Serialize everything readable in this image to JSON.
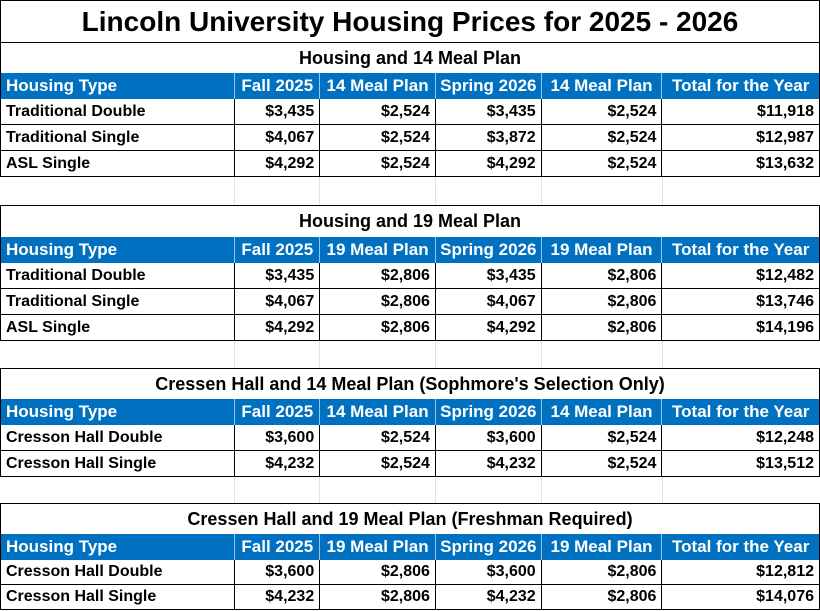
{
  "title": "Lincoln University Housing Prices for 2025 - 2026",
  "sections": [
    {
      "title": "Housing and 14 Meal Plan",
      "headers": [
        "Housing Type",
        "Fall 2025",
        "14 Meal Plan",
        "Spring 2026",
        "14 Meal Plan",
        "Total for the Year"
      ],
      "rows": [
        [
          "Traditional Double",
          "$3,435",
          "$2,524",
          "$3,435",
          "$2,524",
          "$11,918"
        ],
        [
          "Traditional Single",
          "$4,067",
          "$2,524",
          "$3,872",
          "$2,524",
          "$12,987"
        ],
        [
          "ASL Single",
          "$4,292",
          "$2,524",
          "$4,292",
          "$2,524",
          "$13,632"
        ]
      ]
    },
    {
      "title": "Housing and 19 Meal Plan",
      "headers": [
        "Housing Type",
        "Fall 2025",
        "19 Meal Plan",
        "Spring 2026",
        "19 Meal Plan",
        "Total for the Year"
      ],
      "rows": [
        [
          "Traditional Double",
          "$3,435",
          "$2,806",
          "$3,435",
          "$2,806",
          "$12,482"
        ],
        [
          "Traditional Single",
          "$4,067",
          "$2,806",
          "$4,067",
          "$2,806",
          "$13,746"
        ],
        [
          "ASL Single",
          "$4,292",
          "$2,806",
          "$4,292",
          "$2,806",
          "$14,196"
        ]
      ]
    },
    {
      "title": "Cressen Hall and 14 Meal Plan (Sophmore's Selection Only)",
      "headers": [
        "Housing Type",
        "Fall 2025",
        "14 Meal Plan",
        "Spring 2026",
        "14 Meal Plan",
        "Total for the Year"
      ],
      "rows": [
        [
          "Cresson Hall Double",
          "$3,600",
          "$2,524",
          "$3,600",
          "$2,524",
          "$12,248"
        ],
        [
          "Cresson Hall Single",
          "$4,232",
          "$2,524",
          "$4,232",
          "$2,524",
          "$13,512"
        ]
      ]
    },
    {
      "title": "Cressen Hall and 19 Meal Plan (Freshman Required)",
      "headers": [
        "Housing Type",
        "Fall 2025",
        "19 Meal Plan",
        "Spring 2026",
        "19 Meal Plan",
        "Total for the Year"
      ],
      "rows": [
        [
          "Cresson Hall Double",
          "$3,600",
          "$2,806",
          "$3,600",
          "$2,806",
          "$12,812"
        ],
        [
          "Cresson Hall Single",
          "$4,232",
          "$2,806",
          "$4,232",
          "$2,806",
          "$14,076"
        ]
      ]
    }
  ]
}
